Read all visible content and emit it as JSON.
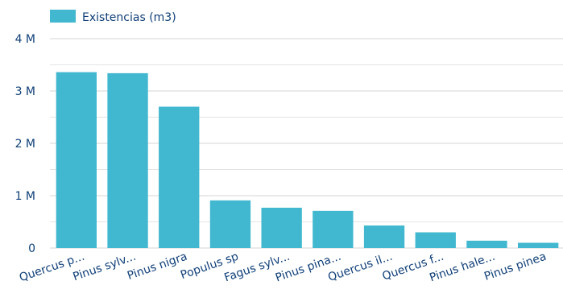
{
  "chart_data": {
    "type": "bar",
    "title": "",
    "xlabel": "",
    "ylabel": "",
    "categories": [
      "Quercus p...",
      "Pinus sylv...",
      "Pinus nigra",
      "Populus sp",
      "Fagus sylv...",
      "Pinus pina...",
      "Quercus il...",
      "Quercus f...",
      "Pinus hale...",
      "Pinus pinea"
    ],
    "series": [
      {
        "name": "Existencias (m3)",
        "color": "#41b8cf",
        "values": [
          3360000,
          3340000,
          2700000,
          910000,
          770000,
          710000,
          430000,
          300000,
          140000,
          100000
        ]
      }
    ],
    "ylim": [
      0,
      4000000
    ],
    "yticks": [
      {
        "value": 0,
        "label": "0"
      },
      {
        "value": 1000000,
        "label": "1 M"
      },
      {
        "value": 2000000,
        "label": "2 M"
      },
      {
        "value": 3000000,
        "label": "3 M"
      },
      {
        "value": 4000000,
        "label": "4 M"
      }
    ],
    "grid": true,
    "legend_position": "top-left"
  }
}
